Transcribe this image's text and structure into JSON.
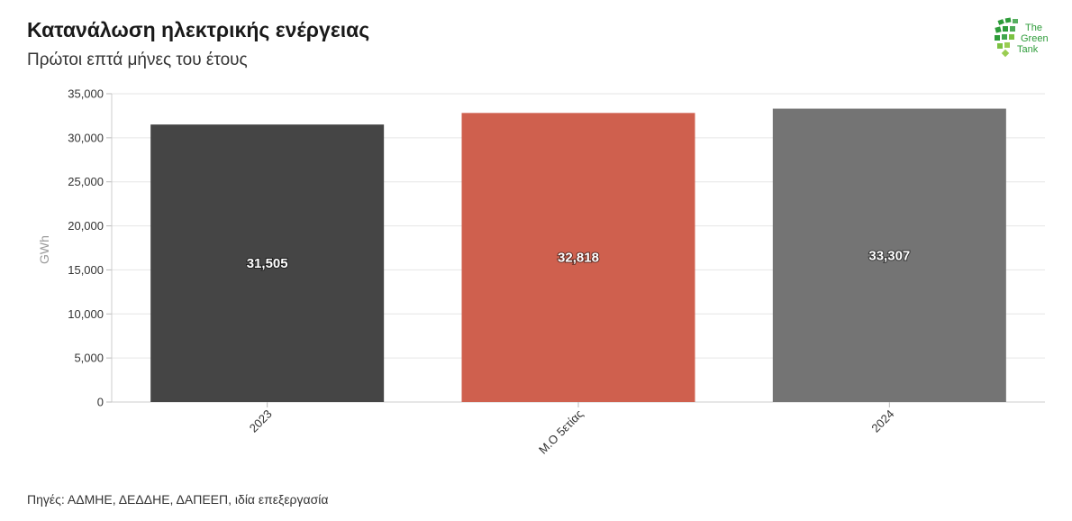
{
  "header": {
    "title": "Κατανάλωση ηλεκτρικής ενέργειας",
    "subtitle": "Πρώτοι επτά μήνες του έτους"
  },
  "footer": {
    "source": "Πηγές: ΑΔΜΗΕ, ΔΕΔΔΗΕ, ΔΑΠΕΕΠ, ιδία επεξεργασία"
  },
  "logo": {
    "line1": "The",
    "line2": "Green",
    "line3": "Tank",
    "color": "#2e9c3a"
  },
  "chart_data": {
    "type": "bar",
    "title": "Κατανάλωση ηλεκτρικής ενέργειας",
    "subtitle": "Πρώτοι επτά μήνες του έτους",
    "categories": [
      "2023",
      "Μ.Ο 5ετίας",
      "2024"
    ],
    "values": [
      31505,
      32818,
      33307
    ],
    "value_labels": [
      "31,505",
      "32,818",
      "33,307"
    ],
    "colors": [
      "#454545",
      "#cf604e",
      "#747474"
    ],
    "xlabel": "",
    "ylabel": "GWh",
    "ylim": [
      0,
      35000
    ],
    "yticks": [
      0,
      5000,
      10000,
      15000,
      20000,
      25000,
      30000,
      35000
    ],
    "ytick_labels": [
      "0",
      "5,000",
      "10,000",
      "15,000",
      "20,000",
      "25,000",
      "30,000",
      "35,000"
    ],
    "grid": true,
    "legend": "none"
  }
}
